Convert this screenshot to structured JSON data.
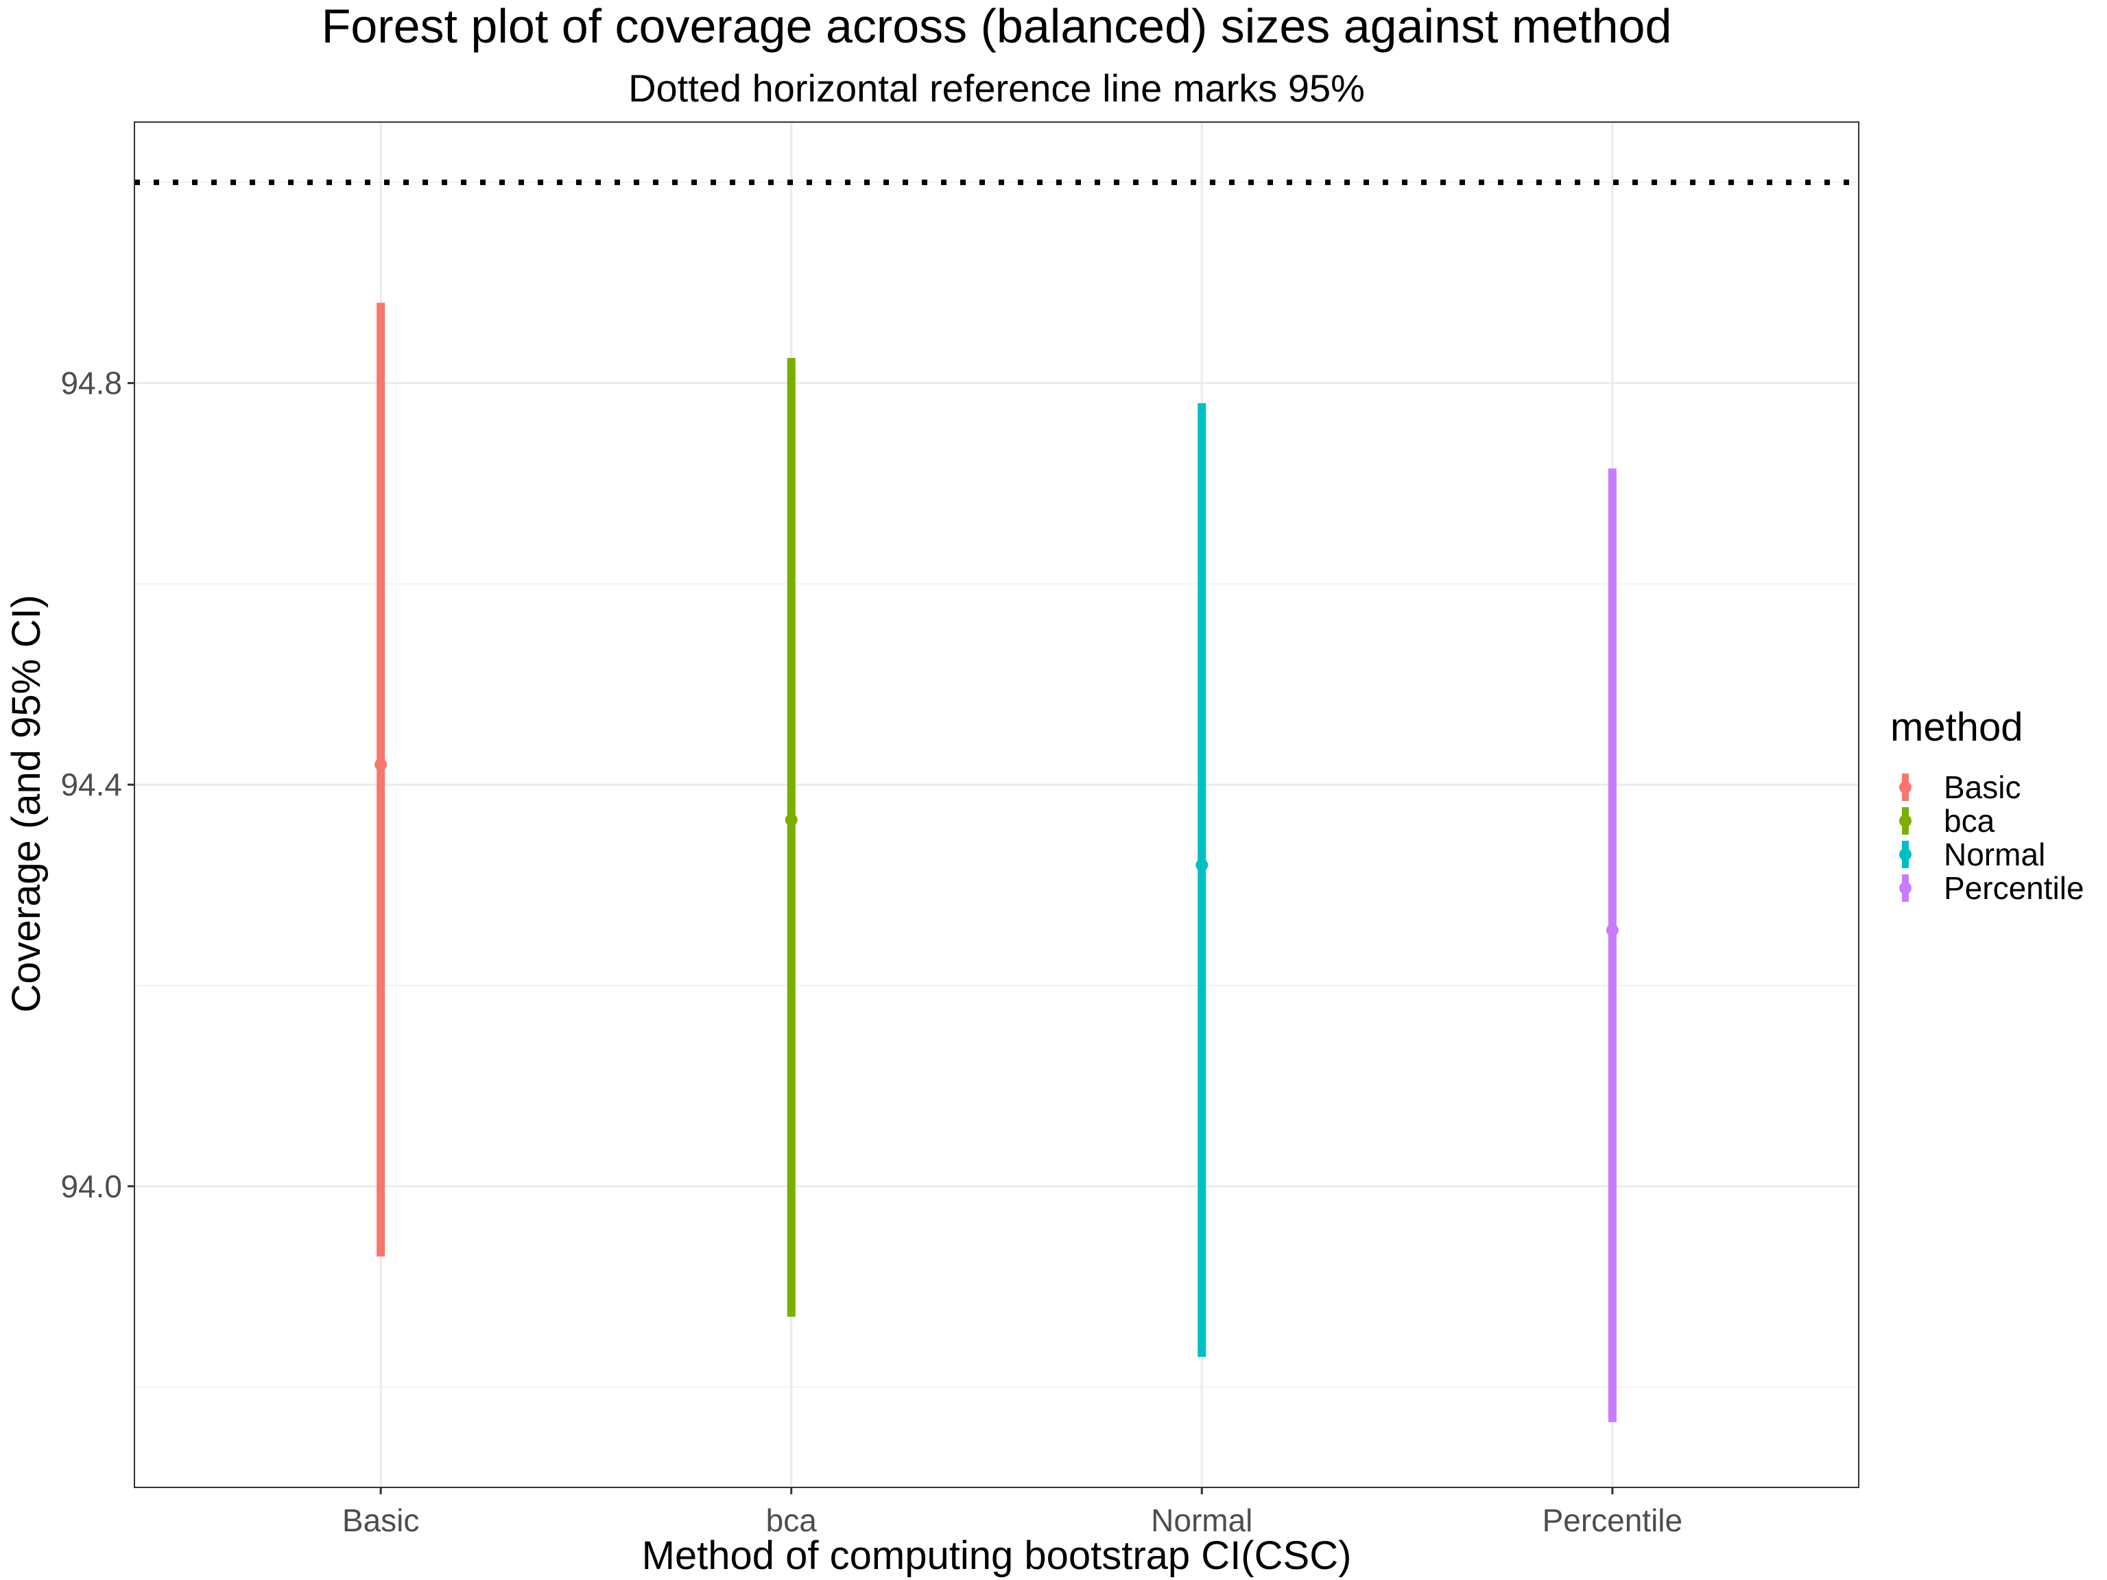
{
  "chart_data": {
    "type": "forest",
    "title": "Forest plot of coverage across (balanced) sizes against method",
    "subtitle": "Dotted horizontal reference line marks 95%",
    "xlabel": "Method of computing bootstrap CI(CSC)",
    "ylabel": "Coverage (and 95% CI)",
    "ylim": [
      93.7,
      95.06
    ],
    "yticks": [
      94.0,
      94.4,
      94.8
    ],
    "ytick_labels": [
      "94.0",
      "94.4",
      "94.8"
    ],
    "reference_line": {
      "value": 95.0,
      "style": "dotted",
      "color": "#000000"
    },
    "categories": [
      "Basic",
      "bca",
      "Normal",
      "Percentile"
    ],
    "points": [
      {
        "method": "Basic",
        "estimate": 94.42,
        "lower": 93.93,
        "upper": 94.88,
        "color": "#F8766D"
      },
      {
        "method": "bca",
        "estimate": 94.365,
        "lower": 93.87,
        "upper": 94.825,
        "color": "#7CAE00"
      },
      {
        "method": "Normal",
        "estimate": 94.32,
        "lower": 93.83,
        "upper": 94.78,
        "color": "#00BFC4"
      },
      {
        "method": "Percentile",
        "estimate": 94.255,
        "lower": 93.765,
        "upper": 94.715,
        "color": "#C77CFF"
      }
    ],
    "legend": {
      "title": "method",
      "position": "right",
      "entries": [
        "Basic",
        "bca",
        "Normal",
        "Percentile"
      ]
    },
    "grid": true
  }
}
